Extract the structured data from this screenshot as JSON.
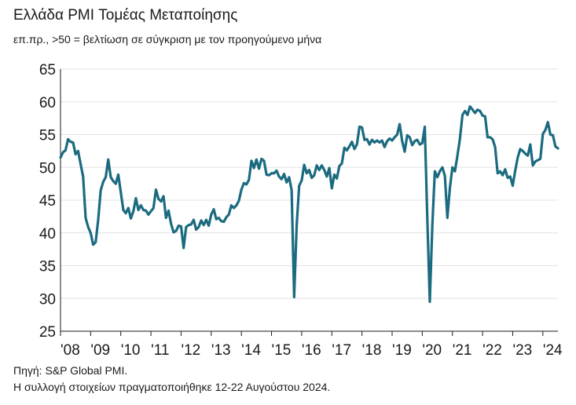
{
  "header": {
    "title": "Ελλάδα PMI Τομέας Μεταποίησης",
    "subtitle": "επ.πρ., >50 = βελτίωση σε σύγκριση με τον προηγούμενο μήνα"
  },
  "footer": {
    "source": "Πηγή: S&P Global PMI.",
    "note": "Η συλλογή στοιχείων πραγματοποιήθηκε 12-22 Αυγούστου 2024."
  },
  "colors": {
    "line": "#1b6b80",
    "grid": "#e3e3e3",
    "axis": "#1a1a1a"
  },
  "chart_data": {
    "type": "line",
    "title": "Ελλάδα PMI Τομέας Μεταποίησης",
    "subtitle": "επ.πρ., >50 = βελτίωση σε σύγκριση με τον προηγούμενο μήνα",
    "xlabel": "",
    "ylabel": "",
    "ylim": [
      25,
      65
    ],
    "yticks": [
      25,
      30,
      35,
      40,
      45,
      50,
      55,
      60,
      65
    ],
    "xlim": [
      "2008-01",
      "2024-07"
    ],
    "xticks": [
      {
        "date": "2008-01",
        "label": "'08"
      },
      {
        "date": "2009-01",
        "label": "'09"
      },
      {
        "date": "2010-01",
        "label": "'10"
      },
      {
        "date": "2011-01",
        "label": "'11"
      },
      {
        "date": "2012-01",
        "label": "'12"
      },
      {
        "date": "2013-01",
        "label": "'13"
      },
      {
        "date": "2014-01",
        "label": "'14"
      },
      {
        "date": "2015-01",
        "label": "'15"
      },
      {
        "date": "2016-01",
        "label": "'16"
      },
      {
        "date": "2017-01",
        "label": "'17"
      },
      {
        "date": "2018-01",
        "label": "'18"
      },
      {
        "date": "2019-01",
        "label": "'19"
      },
      {
        "date": "2020-01",
        "label": "'20"
      },
      {
        "date": "2021-01",
        "label": "'21"
      },
      {
        "date": "2022-01",
        "label": "'22"
      },
      {
        "date": "2023-01",
        "label": "'23"
      },
      {
        "date": "2024-01",
        "label": "'24"
      }
    ],
    "grid": true,
    "legend": "none",
    "series": [
      {
        "x": [
          "2008-01",
          "2008-02",
          "2008-03",
          "2008-04",
          "2008-05",
          "2008-06",
          "2008-07",
          "2008-08",
          "2008-09",
          "2008-10",
          "2008-11",
          "2008-12",
          "2009-01",
          "2009-02",
          "2009-03",
          "2009-04",
          "2009-05",
          "2009-06",
          "2009-07",
          "2009-08",
          "2009-09",
          "2009-10",
          "2009-11",
          "2009-12",
          "2010-01",
          "2010-02",
          "2010-03",
          "2010-04",
          "2010-05",
          "2010-06",
          "2010-07",
          "2010-08",
          "2010-09",
          "2010-10",
          "2010-11",
          "2010-12",
          "2011-01",
          "2011-02",
          "2011-03",
          "2011-04",
          "2011-05",
          "2011-06",
          "2011-07",
          "2011-08",
          "2011-09",
          "2011-10",
          "2011-11",
          "2011-12",
          "2012-01",
          "2012-02",
          "2012-03",
          "2012-04",
          "2012-05",
          "2012-06",
          "2012-07",
          "2012-08",
          "2012-09",
          "2012-10",
          "2012-11",
          "2012-12",
          "2013-01",
          "2013-02",
          "2013-03",
          "2013-04",
          "2013-05",
          "2013-06",
          "2013-07",
          "2013-08",
          "2013-09",
          "2013-10",
          "2013-11",
          "2013-12",
          "2014-01",
          "2014-02",
          "2014-03",
          "2014-04",
          "2014-05",
          "2014-06",
          "2014-07",
          "2014-08",
          "2014-09",
          "2014-10",
          "2014-11",
          "2014-12",
          "2015-01",
          "2015-02",
          "2015-03",
          "2015-04",
          "2015-05",
          "2015-06",
          "2015-07",
          "2015-08",
          "2015-09",
          "2015-10",
          "2015-11",
          "2015-12",
          "2016-01",
          "2016-02",
          "2016-03",
          "2016-04",
          "2016-05",
          "2016-06",
          "2016-07",
          "2016-08",
          "2016-09",
          "2016-10",
          "2016-11",
          "2016-12",
          "2017-01",
          "2017-02",
          "2017-03",
          "2017-04",
          "2017-05",
          "2017-06",
          "2017-07",
          "2017-08",
          "2017-09",
          "2017-10",
          "2017-11",
          "2017-12",
          "2018-01",
          "2018-02",
          "2018-03",
          "2018-04",
          "2018-05",
          "2018-06",
          "2018-07",
          "2018-08",
          "2018-09",
          "2018-10",
          "2018-11",
          "2018-12",
          "2019-01",
          "2019-02",
          "2019-03",
          "2019-04",
          "2019-05",
          "2019-06",
          "2019-07",
          "2019-08",
          "2019-09",
          "2019-10",
          "2019-11",
          "2019-12",
          "2020-01",
          "2020-02",
          "2020-03",
          "2020-04",
          "2020-05",
          "2020-06",
          "2020-07",
          "2020-08",
          "2020-09",
          "2020-10",
          "2020-11",
          "2020-12",
          "2021-01",
          "2021-02",
          "2021-03",
          "2021-04",
          "2021-05",
          "2021-06",
          "2021-07",
          "2021-08",
          "2021-09",
          "2021-10",
          "2021-11",
          "2021-12",
          "2022-01",
          "2022-02",
          "2022-03",
          "2022-04",
          "2022-05",
          "2022-06",
          "2022-07",
          "2022-08",
          "2022-09",
          "2022-10",
          "2022-11",
          "2022-12",
          "2023-01",
          "2023-02",
          "2023-03",
          "2023-04",
          "2023-05",
          "2023-06",
          "2023-07",
          "2023-08",
          "2023-09",
          "2023-10",
          "2023-11",
          "2023-12",
          "2024-01",
          "2024-02",
          "2024-03",
          "2024-04",
          "2024-05",
          "2024-06",
          "2024-07"
        ],
        "values": [
          51.5,
          52.3,
          52.6,
          54.3,
          53.9,
          53.8,
          52.0,
          52.5,
          50.5,
          48.6,
          42.3,
          40.9,
          40.0,
          38.2,
          38.6,
          42.0,
          46.5,
          47.8,
          48.5,
          51.2,
          48.5,
          47.9,
          47.5,
          48.9,
          46.2,
          43.5,
          43.0,
          43.8,
          42.2,
          43.3,
          45.3,
          43.5,
          44.2,
          43.5,
          43.4,
          42.8,
          43.3,
          43.8,
          46.6,
          45.2,
          44.8,
          45.6,
          42.3,
          43.4,
          41.4,
          40.1,
          40.3,
          41.1,
          41.0,
          37.7,
          40.9,
          41.2,
          41.3,
          42.0,
          40.5,
          40.9,
          41.9,
          41.2,
          42.0,
          41.1,
          42.8,
          43.6,
          42.1,
          42.3,
          41.8,
          41.7,
          42.4,
          42.8,
          44.2,
          43.8,
          44.2,
          44.9,
          46.6,
          47.6,
          47.4,
          48.1,
          51.0,
          49.9,
          51.2,
          49.8,
          51.3,
          51.0,
          48.9,
          48.8,
          49.1,
          49.1,
          49.5,
          48.6,
          48.2,
          49.0,
          47.7,
          48.5,
          46.5,
          30.2,
          41.1,
          47.2,
          48.0,
          50.4,
          49.1,
          49.6,
          48.4,
          48.8,
          50.3,
          49.6,
          50.3,
          49.6,
          48.6,
          49.9,
          46.8,
          48.9,
          48.3,
          50.2,
          50.6,
          53.0,
          52.6,
          53.2,
          53.9,
          52.8,
          53.5,
          56.2,
          56.1,
          54.2,
          54.3,
          53.5,
          54.2,
          53.8,
          54.1,
          53.8,
          54.1,
          53.1,
          54.0,
          54.4,
          54.1,
          54.6,
          55.0,
          56.6,
          54.0,
          52.4,
          54.9,
          54.6,
          53.4,
          54.0,
          54.2,
          53.5,
          53.7,
          56.2,
          42.3,
          29.5,
          41.1,
          49.4,
          48.5,
          49.4,
          50.0,
          48.7,
          42.3,
          46.9,
          50.0,
          49.4,
          51.8,
          54.4,
          58.0,
          58.6,
          58.0,
          59.3,
          58.8,
          58.3,
          58.8,
          58.6,
          57.9,
          57.8,
          54.6,
          54.6,
          54.3,
          53.1,
          49.1,
          49.4,
          48.8,
          49.7,
          48.4,
          48.6,
          47.2,
          49.5,
          51.5,
          52.8,
          52.5,
          52.1,
          51.8,
          53.5,
          50.3,
          50.9,
          51.1,
          51.3,
          55.1,
          55.7,
          56.9,
          55.0,
          54.9,
          53.2,
          52.9
        ]
      }
    ]
  }
}
